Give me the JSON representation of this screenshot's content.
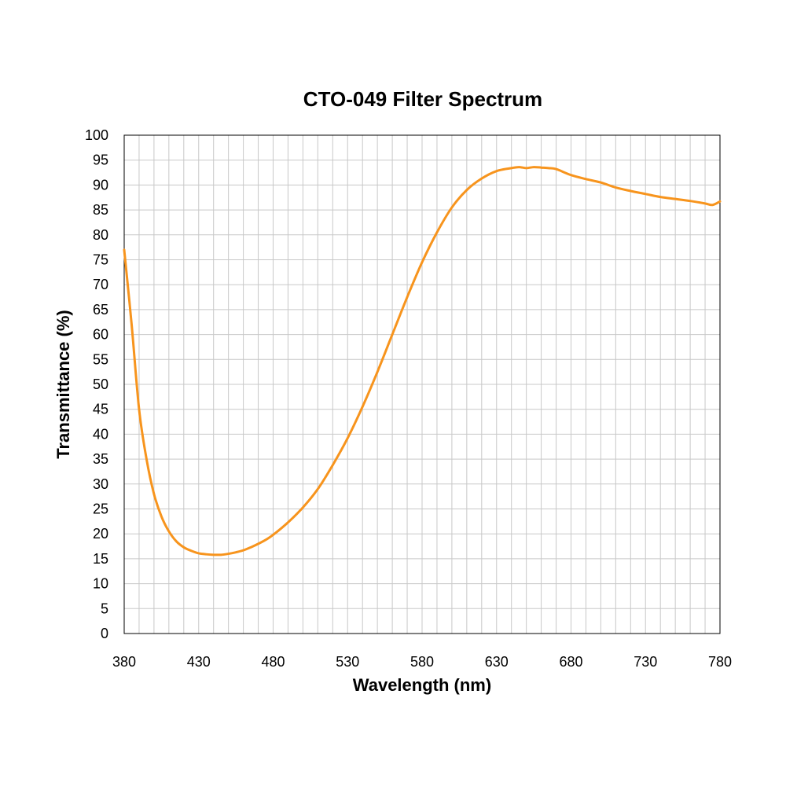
{
  "chart_data": {
    "type": "line",
    "title": "CTO-049 Filter Spectrum",
    "xlabel": "Wavelength (nm)",
    "ylabel": "Transmittance (%)",
    "xlim": [
      380,
      780
    ],
    "ylim": [
      0,
      100
    ],
    "x_ticks": [
      380,
      430,
      480,
      530,
      580,
      630,
      680,
      730,
      780
    ],
    "x_minor_step": 10,
    "y_ticks": [
      0,
      5,
      10,
      15,
      20,
      25,
      30,
      35,
      40,
      45,
      50,
      55,
      60,
      65,
      70,
      75,
      80,
      85,
      90,
      95,
      100
    ],
    "grid": true,
    "legend": "none",
    "series": [
      {
        "color": "#f7941d",
        "x": [
          380,
          385,
          390,
          395,
          400,
          405,
          410,
          415,
          420,
          425,
          430,
          435,
          440,
          445,
          450,
          455,
          460,
          465,
          470,
          475,
          480,
          490,
          500,
          510,
          520,
          530,
          540,
          550,
          560,
          570,
          580,
          590,
          600,
          610,
          620,
          630,
          640,
          645,
          650,
          655,
          660,
          665,
          670,
          680,
          690,
          700,
          710,
          720,
          730,
          740,
          750,
          760,
          770,
          775,
          780
        ],
        "y": [
          77,
          62,
          45,
          35,
          28,
          23.5,
          20.5,
          18.5,
          17.3,
          16.6,
          16.1,
          15.9,
          15.8,
          15.8,
          16,
          16.3,
          16.7,
          17.3,
          18,
          18.8,
          19.8,
          22.3,
          25.3,
          29,
          33.8,
          39.2,
          45.5,
          52.5,
          60,
          67.5,
          74.5,
          80.5,
          85.5,
          89,
          91.3,
          92.8,
          93.4,
          93.6,
          93.4,
          93.6,
          93.5,
          93.4,
          93.2,
          92,
          91.2,
          90.5,
          89.5,
          88.8,
          88.2,
          87.6,
          87.2,
          86.8,
          86.3,
          86,
          86.7
        ]
      }
    ]
  }
}
